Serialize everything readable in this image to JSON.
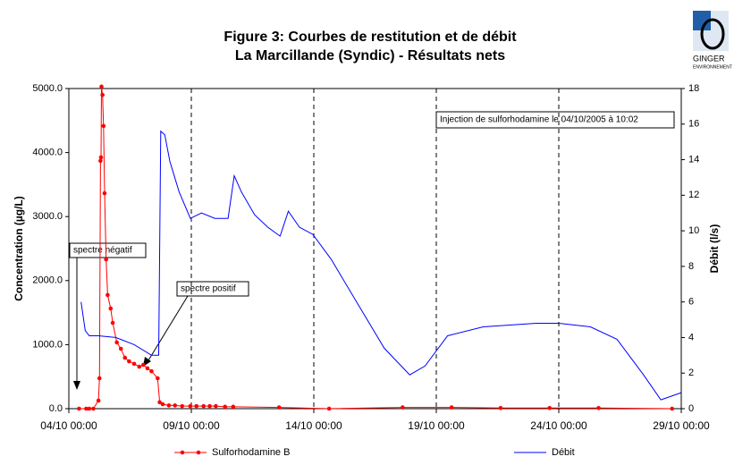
{
  "logo": {
    "name": "GINGER",
    "subname": "ENVIRONNEMENT"
  },
  "chart_data": {
    "type": "line",
    "title": "Figure 3: Courbes de restitution et de débit",
    "subtitle": "La Marcillande (Syndic) - Résultats nets",
    "y_label": "Concentration (µg/L)",
    "y2_label": "Débit (l/s)",
    "annotations": [
      "spectre négatif",
      "spectre positif",
      "Injection de sulforhodamine le 04/10/2005 à 10:02"
    ],
    "xlim": [
      "04/10 00:00",
      "29/10 00:00"
    ],
    "xticks": [
      "04/10 00:00",
      "09/10 00:00",
      "14/10 00:00",
      "19/10 00:00",
      "24/10 00:00",
      "29/10 00:00"
    ],
    "ylim": [
      0,
      5000
    ],
    "yticks": [
      {
        "value": 0,
        "label": "0.0"
      },
      {
        "value": 1000,
        "label": "1000.0"
      },
      {
        "value": 2000,
        "label": "2000.0"
      },
      {
        "value": 3000,
        "label": "3000.0"
      },
      {
        "value": 4000,
        "label": "4000.0"
      },
      {
        "value": 5000,
        "label": "5000.0"
      }
    ],
    "y2lim": [
      0,
      18
    ],
    "y2ticks": [
      0,
      2,
      4,
      6,
      8,
      10,
      12,
      14,
      16,
      18
    ],
    "grid": true,
    "legend": "bottom",
    "series": [
      {
        "name": "Sulforhodamine B",
        "color": "#ff0000",
        "markers": true,
        "x": [
          "04/10 10:00",
          "04/10 17:00",
          "04/10 20:00",
          "05/10 00:00",
          "05/10 05:00",
          "05/10 06:00",
          "05/10 07:00",
          "05/10 07:30",
          "05/10 08:00",
          "05/10 09:00",
          "05/10 10:00",
          "05/10 11:00",
          "05/10 12:30",
          "05/10 14:00",
          "05/10 17:00",
          "05/10 19:00",
          "05/10 23:00",
          "06/10 03:00",
          "06/10 07:00",
          "06/10 11:00",
          "06/10 16:00",
          "06/10 21:00",
          "07/10 01:00",
          "07/10 05:00",
          "07/10 09:00",
          "07/10 15:00",
          "07/10 17:00",
          "07/10 20:00",
          "08/10 02:00",
          "08/10 08:00",
          "08/10 15:00",
          "08/10 23:00",
          "09/10 05:00",
          "09/10 12:00",
          "09/10 18:00",
          "10/10 00:00",
          "10/10 09:00",
          "10/10 17:00",
          "12/10 14:00",
          "14/10 15:00",
          "17/10 15:00",
          "19/10 15:00",
          "21/10 15:00",
          "23/10 15:00",
          "25/10 15:00",
          "28/10 15:00"
        ],
        "values": [
          0,
          0,
          0,
          0,
          126,
          475,
          3870,
          3925,
          5030,
          4900,
          4415,
          3365,
          2330,
          1775,
          1565,
          1340,
          1035,
          935,
          795,
          740,
          700,
          655,
          685,
          630,
          585,
          475,
          100,
          70,
          50,
          50,
          40,
          40,
          40,
          40,
          40,
          40,
          30,
          30,
          20,
          0,
          20,
          20,
          10,
          10,
          10,
          0
        ]
      },
      {
        "name": "Débit",
        "color": "#0000ff",
        "axis": "y2",
        "markers": false,
        "x": [
          "04/10 12:00",
          "04/10 16:00",
          "04/10 20:00",
          "05/10 05:00",
          "05/10 22:00",
          "06/10 16:00",
          "07/10 09:00",
          "07/10 16:00",
          "07/10 18:00",
          "07/10 22:00",
          "08/10 03:00",
          "08/10 12:00",
          "08/10 23:00",
          "09/10 10:00",
          "09/10 23:00",
          "10/10 12:00",
          "10/10 18:00",
          "11/10 01:00",
          "11/10 14:00",
          "12/10 03:00",
          "12/10 15:00",
          "12/10 23:00",
          "13/10 10:00",
          "13/10 23:00",
          "14/10 17:00",
          "15/10 19:00",
          "16/10 21:00",
          "17/10 22:00",
          "18/10 13:00",
          "19/10 11:00",
          "20/10 22:00",
          "23/10 02:00",
          "24/10 00:00",
          "25/10 07:00",
          "26/10 09:00",
          "27/10 11:00",
          "28/10 04:00",
          "29/10 00:00"
        ],
        "values": [
          6.0,
          4.4,
          4.1,
          4.1,
          4.0,
          3.6,
          3.0,
          3.0,
          15.6,
          15.4,
          13.9,
          12.2,
          10.7,
          11.0,
          10.7,
          10.7,
          13.1,
          12.2,
          10.9,
          10.2,
          9.7,
          11.1,
          10.2,
          9.8,
          8.4,
          5.9,
          3.4,
          1.9,
          2.4,
          4.1,
          4.6,
          4.8,
          4.8,
          4.6,
          3.9,
          1.9,
          0.5,
          0.9
        ]
      }
    ]
  }
}
